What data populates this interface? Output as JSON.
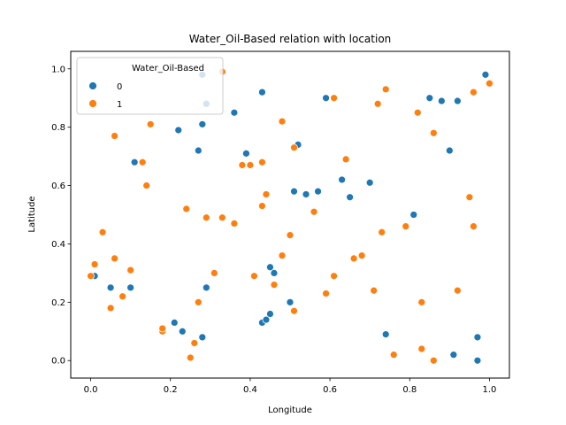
{
  "chart_data": {
    "type": "scatter",
    "title": "Water_Oil-Based relation with location",
    "xlabel": "Longitude",
    "ylabel": "Latitude",
    "xlim": [
      -0.05,
      1.05
    ],
    "ylim": [
      -0.06,
      1.06
    ],
    "xticks": [
      "0.0",
      "0.2",
      "0.4",
      "0.6",
      "0.8",
      "1.0"
    ],
    "yticks": [
      "0.0",
      "0.2",
      "0.4",
      "0.6",
      "0.8",
      "1.0"
    ],
    "grid": false,
    "legend": {
      "title": "Water_Oil-Based",
      "placement": "top-left",
      "entries": [
        {
          "label": "0",
          "color": "#1f77b4"
        },
        {
          "label": "1",
          "color": "#ff7f0e"
        }
      ]
    },
    "series": [
      {
        "name": "0",
        "color": "#1f77b4",
        "points": [
          [
            0.01,
            0.29
          ],
          [
            0.05,
            0.25
          ],
          [
            0.1,
            0.25
          ],
          [
            0.11,
            0.68
          ],
          [
            0.21,
            0.13
          ],
          [
            0.22,
            0.79
          ],
          [
            0.23,
            0.1
          ],
          [
            0.27,
            0.72
          ],
          [
            0.28,
            0.08
          ],
          [
            0.28,
            0.81
          ],
          [
            0.28,
            0.98
          ],
          [
            0.29,
            0.88
          ],
          [
            0.29,
            0.25
          ],
          [
            0.36,
            0.85
          ],
          [
            0.39,
            0.71
          ],
          [
            0.43,
            0.92
          ],
          [
            0.43,
            0.13
          ],
          [
            0.44,
            0.14
          ],
          [
            0.45,
            0.16
          ],
          [
            0.45,
            0.32
          ],
          [
            0.46,
            0.3
          ],
          [
            0.5,
            0.2
          ],
          [
            0.51,
            0.58
          ],
          [
            0.52,
            0.74
          ],
          [
            0.54,
            0.57
          ],
          [
            0.57,
            0.58
          ],
          [
            0.59,
            0.9
          ],
          [
            0.63,
            0.62
          ],
          [
            0.65,
            0.56
          ],
          [
            0.7,
            0.61
          ],
          [
            0.74,
            0.09
          ],
          [
            0.81,
            0.5
          ],
          [
            0.85,
            0.9
          ],
          [
            0.88,
            0.89
          ],
          [
            0.9,
            0.72
          ],
          [
            0.91,
            0.02
          ],
          [
            0.92,
            0.89
          ],
          [
            0.97,
            0.08
          ],
          [
            0.97,
            0.0
          ],
          [
            0.99,
            0.98
          ]
        ]
      },
      {
        "name": "1",
        "color": "#ff7f0e",
        "points": [
          [
            0.0,
            0.29
          ],
          [
            0.01,
            0.33
          ],
          [
            0.03,
            0.44
          ],
          [
            0.05,
            0.18
          ],
          [
            0.06,
            0.77
          ],
          [
            0.06,
            0.35
          ],
          [
            0.08,
            0.22
          ],
          [
            0.1,
            0.31
          ],
          [
            0.13,
            0.68
          ],
          [
            0.14,
            0.6
          ],
          [
            0.15,
            0.81
          ],
          [
            0.18,
            0.1
          ],
          [
            0.18,
            0.11
          ],
          [
            0.24,
            0.52
          ],
          [
            0.25,
            0.01
          ],
          [
            0.26,
            0.06
          ],
          [
            0.27,
            0.2
          ],
          [
            0.29,
            0.49
          ],
          [
            0.31,
            0.3
          ],
          [
            0.33,
            0.49
          ],
          [
            0.33,
            0.99
          ],
          [
            0.36,
            0.47
          ],
          [
            0.38,
            0.67
          ],
          [
            0.4,
            0.67
          ],
          [
            0.41,
            0.29
          ],
          [
            0.43,
            0.68
          ],
          [
            0.43,
            0.53
          ],
          [
            0.44,
            0.57
          ],
          [
            0.46,
            0.26
          ],
          [
            0.48,
            0.82
          ],
          [
            0.48,
            0.36
          ],
          [
            0.5,
            0.43
          ],
          [
            0.51,
            0.73
          ],
          [
            0.51,
            0.17
          ],
          [
            0.56,
            0.51
          ],
          [
            0.59,
            0.23
          ],
          [
            0.61,
            0.9
          ],
          [
            0.61,
            0.29
          ],
          [
            0.64,
            0.69
          ],
          [
            0.66,
            0.35
          ],
          [
            0.68,
            0.36
          ],
          [
            0.71,
            0.24
          ],
          [
            0.72,
            0.88
          ],
          [
            0.73,
            0.44
          ],
          [
            0.74,
            0.93
          ],
          [
            0.76,
            0.02
          ],
          [
            0.79,
            0.46
          ],
          [
            0.82,
            0.85
          ],
          [
            0.83,
            0.2
          ],
          [
            0.83,
            0.04
          ],
          [
            0.86,
            0.0
          ],
          [
            0.86,
            0.78
          ],
          [
            0.92,
            0.24
          ],
          [
            0.95,
            0.56
          ],
          [
            0.96,
            0.92
          ],
          [
            0.96,
            0.46
          ],
          [
            1.0,
            0.95
          ]
        ]
      }
    ]
  }
}
